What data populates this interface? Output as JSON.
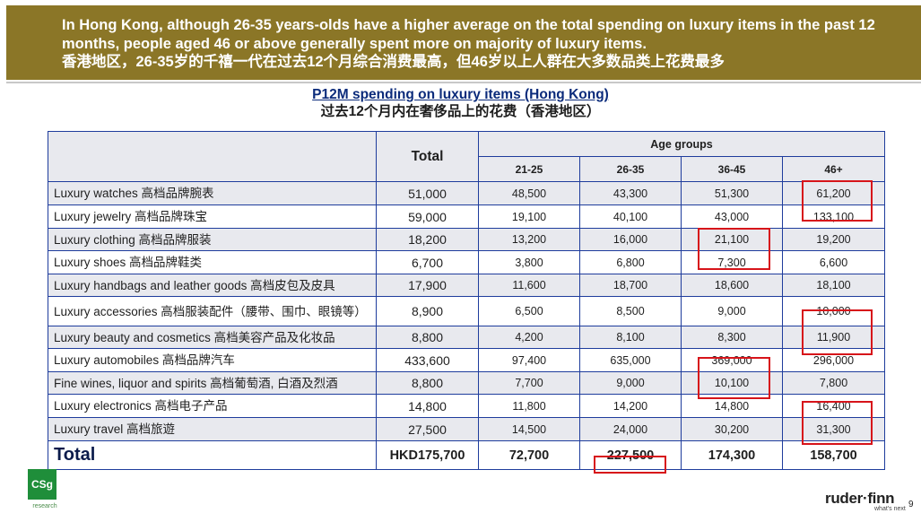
{
  "header": {
    "line_en": "In Hong Kong, although 26-35 years-olds have a higher average on the total spending on luxury items in the past 12 months, people aged 46 or above generally spent more on majority of luxury items.",
    "line_zh": "香港地区，26-35岁的千禧一代在过去12个月综合消费最高，但46岁以上人群在大多数品类上花费最多"
  },
  "title": {
    "en": "P12M spending on luxury items (Hong Kong)",
    "zh": "过去12个月内在奢侈品上的花费（香港地区）"
  },
  "table": {
    "total_label": "Total",
    "age_groups_label": "Age groups",
    "age_columns": [
      "21-25",
      "26-35",
      "36-45",
      "46+"
    ],
    "rows": [
      {
        "item": "Luxury watches 高档品牌腕表",
        "total": "51,000",
        "values": [
          "48,500",
          "43,300",
          "51,300",
          "61,200"
        ]
      },
      {
        "item": "Luxury jewelry 高档品牌珠宝",
        "total": "59,000",
        "values": [
          "19,100",
          "40,100",
          "43,000",
          "133,100"
        ]
      },
      {
        "item": "Luxury clothing 高档品牌服装",
        "total": "18,200",
        "values": [
          "13,200",
          "16,000",
          "21,100",
          "19,200"
        ]
      },
      {
        "item": "Luxury shoes 高档品牌鞋类",
        "total": "6,700",
        "values": [
          "3,800",
          "6,800",
          "7,300",
          "6,600"
        ]
      },
      {
        "item": "Luxury handbags and leather goods 高档皮包及皮具",
        "total": "17,900",
        "values": [
          "11,600",
          "18,700",
          "18,600",
          "18,100"
        ]
      },
      {
        "item": "Luxury accessories 高档服装配件（腰带、围巾、眼镜等）",
        "total": "8,900",
        "values": [
          "6,500",
          "8,500",
          "9,000",
          "10,000"
        ]
      },
      {
        "item": "Luxury beauty and cosmetics 高档美容产品及化妆品",
        "total": "8,800",
        "values": [
          "4,200",
          "8,100",
          "8,300",
          "11,900"
        ]
      },
      {
        "item": "Luxury automobiles 高档品牌汽车",
        "total": "433,600",
        "values": [
          "97,400",
          "635,000",
          "369,000",
          "296,000"
        ]
      },
      {
        "item": "Fine wines, liquor and spirits 高档葡萄酒, 白酒及烈酒",
        "total": "8,800",
        "values": [
          "7,700",
          "9,000",
          "10,100",
          "7,800"
        ]
      },
      {
        "item": "Luxury electronics 高档电子产品",
        "total": "14,800",
        "values": [
          "11,800",
          "14,200",
          "14,800",
          "16,400"
        ]
      },
      {
        "item": "Luxury travel 高档旅遊",
        "total": "27,500",
        "values": [
          "14,500",
          "24,000",
          "30,200",
          "31,300"
        ]
      }
    ],
    "grand_total": {
      "label": "Total",
      "total": "HKD175,700",
      "values": [
        "72,700",
        "227,500",
        "174,300",
        "158,700"
      ]
    }
  },
  "footer": {
    "logo_left_text": "CSg",
    "logo_left_sub": "research",
    "logo_right": "ruder·finn",
    "logo_right_tag": "what's next",
    "page_number": "9"
  },
  "colors": {
    "header_bg": "#8b7627",
    "table_border": "#1e3c9c",
    "shade": "#e8e9ee",
    "highlight": "#d7141a"
  }
}
